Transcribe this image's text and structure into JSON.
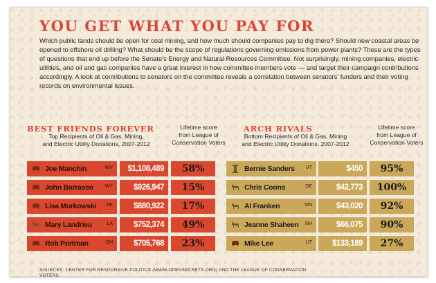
{
  "headline": "YOU GET WHAT YOU PAY FOR",
  "intro": "Which public lands should be open for coal mining, and how much should companies pay to dig there? Should new coastal areas be opened to offshore oil drilling? What should be the scope of regulations governing emissions from power plants? These are the types of questions that end up before the Senate's Energy and Natural Resources Committee. Not surprisingly, mining companies, electric utilities, and oil and gas companies have a great interest in how committee members vote — and target their campaign contributions accordingly. A look at contributions to senators on the committee reveals a correlation between senators' funders and their voting records on environmental issues.",
  "sources": "SOURCES: CENTER FOR RESPONSIVE POLITICS (WWW.OPENSECRETS.ORG) AND THE LEAGUE OF CONSERVATION VOTERS.",
  "colors": {
    "best_friends": "#d9472f",
    "arch_rivals": "#caa85a",
    "accent": "#d9473a"
  },
  "chart_data": [
    {
      "type": "table",
      "title": "BEST FRIENDS FOREVER",
      "subtitle_line1": "Top Recipients of Oil & Gas, Mining,",
      "subtitle_line2": "and Electric Utility Donations, 2007-2012",
      "score_header_line1": "Lifetime score",
      "score_header_line2": "from League of",
      "score_header_line3": "Conservation Voters",
      "rows": [
        {
          "party_icon": "elephant-icon",
          "name": "Joe Manchin",
          "state": "WV",
          "donations": "$1,108,489",
          "donations_value": 1108489,
          "score": "58%",
          "score_value": 58
        },
        {
          "party_icon": "elephant-icon",
          "name": "John Barrasso",
          "state": "WY",
          "donations": "$926,947",
          "donations_value": 926947,
          "score": "15%",
          "score_value": 15
        },
        {
          "party_icon": "elephant-icon",
          "name": "Lisa Murkowski",
          "state": "AK",
          "donations": "$880,922",
          "donations_value": 880922,
          "score": "17%",
          "score_value": 17
        },
        {
          "party_icon": "donkey-icon",
          "name": "Mary Landrieu",
          "state": "LA",
          "donations": "$752,374",
          "donations_value": 752374,
          "score": "49%",
          "score_value": 49
        },
        {
          "party_icon": "elephant-icon",
          "name": "Rob Portman",
          "state": "OH",
          "donations": "$705,768",
          "donations_value": 705768,
          "score": "23%",
          "score_value": 23
        }
      ]
    },
    {
      "type": "table",
      "title": "ARCH RIVALS",
      "subtitle_line1": "Bottom Recipients of Oil & Gas, Mining",
      "subtitle_line2": "and Electric Utility Donations, 2007-2012",
      "score_header_line1": "Lifetime score",
      "score_header_line2": "from League of",
      "score_header_line3": "Conservation Voters",
      "rows": [
        {
          "party_icon": "independent-icon",
          "name": "Bernie Sanders",
          "state": "VT",
          "donations": "$450",
          "donations_value": 450,
          "score": "95%",
          "score_value": 95
        },
        {
          "party_icon": "donkey-icon",
          "name": "Chris Coons",
          "state": "DE",
          "donations": "$42,773",
          "donations_value": 42773,
          "score": "100%",
          "score_value": 100
        },
        {
          "party_icon": "donkey-icon",
          "name": "Al Franken",
          "state": "MN",
          "donations": "$43,020",
          "donations_value": 43020,
          "score": "92%",
          "score_value": 92
        },
        {
          "party_icon": "donkey-icon",
          "name": "Jeanne Shaheen",
          "state": "NH",
          "donations": "$66,075",
          "donations_value": 66075,
          "score": "90%",
          "score_value": 90
        },
        {
          "party_icon": "elephant-icon",
          "name": "Mike Lee",
          "state": "UT",
          "donations": "$133,189",
          "donations_value": 133189,
          "score": "27%",
          "score_value": 27
        }
      ]
    }
  ]
}
